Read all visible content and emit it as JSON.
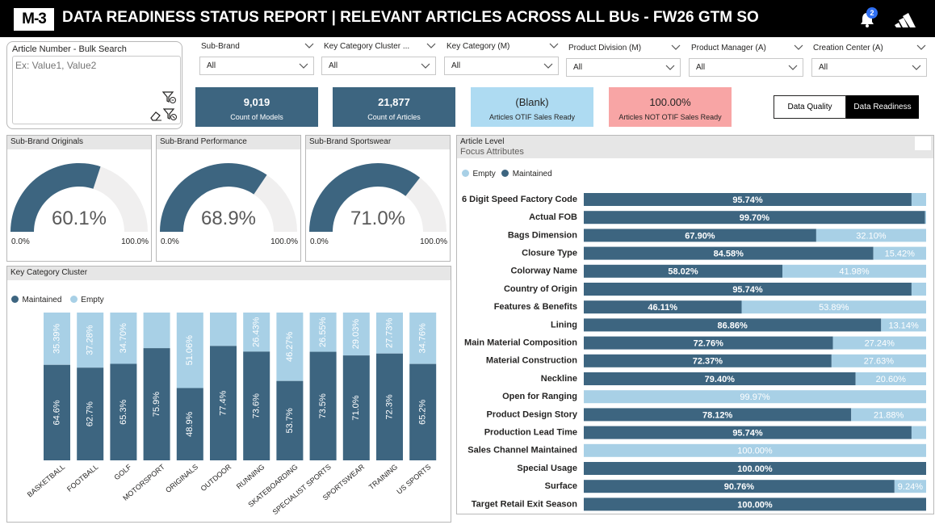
{
  "header": {
    "logo": "M-3",
    "title": "DATA READINESS STATUS REPORT | RELEVANT ARTICLES ACROSS ALL BUs - FW26 GTM SO",
    "notification_count": "2"
  },
  "search": {
    "label": "Article Number - Bulk Search",
    "placeholder": "Ex: Value1, Value2"
  },
  "slicers": [
    {
      "label": "Sub-Brand",
      "value": "All"
    },
    {
      "label": "Key Category Cluster ...",
      "value": "All"
    },
    {
      "label": "Key Category (M)",
      "value": "All"
    },
    {
      "label": "Product Division (M)",
      "value": "All"
    },
    {
      "label": "Product Manager (A)",
      "value": "All"
    },
    {
      "label": "Creation Center (A)",
      "value": "All"
    }
  ],
  "kpis": [
    {
      "value": "9,019",
      "label": "Count of Models"
    },
    {
      "value": "21,877",
      "label": "Count of Articles"
    },
    {
      "value": "(Blank)",
      "label": "Articles OTIF Sales Ready"
    },
    {
      "value": "100.00%",
      "label": "Articles NOT OTIF Sales Ready"
    }
  ],
  "toggle": {
    "quality": "Data Quality",
    "readiness": "Data Readiness"
  },
  "colors": {
    "maintained": "#3d6580",
    "empty": "#a8d0e6",
    "gauge_track": "#f0efef",
    "kpi_dark": "#3d6580",
    "kpi_light": "#aedbf2",
    "kpi_red": "#f8a5a5"
  },
  "gauges": [
    {
      "title": "Sub-Brand Originals",
      "value": 60.1,
      "value_text": "60.1%",
      "min": "0.0%",
      "max": "100.0%"
    },
    {
      "title": "Sub-Brand Performance",
      "value": 68.9,
      "value_text": "68.9%",
      "min": "0.0%",
      "max": "100.0%"
    },
    {
      "title": "Sub-Brand Sportswear",
      "value": 71.0,
      "value_text": "71.0%",
      "min": "0.0%",
      "max": "100.0%"
    }
  ],
  "key_category_panel": {
    "title": "Key Category Cluster",
    "legend": [
      "Maintained",
      "Empty"
    ]
  },
  "article_panel": {
    "title": "Article Level",
    "subtitle": "Focus Attributes",
    "legend": [
      "Empty",
      "Maintained"
    ]
  },
  "chart_data": [
    {
      "type": "bar",
      "stacked": true,
      "orientation": "vertical",
      "categories": [
        "BASKETBALL",
        "FOOTBALL",
        "GOLF",
        "MOTORSPORT",
        "ORIGINALS",
        "OUTDOOR",
        "RUNNING",
        "SKATEBOARDING",
        "SPECIALIST SPORTS",
        "SPORTSWEAR",
        "TRAINING",
        "US SPORTS"
      ],
      "series": [
        {
          "name": "Maintained",
          "values": [
            64.6,
            62.7,
            65.3,
            75.9,
            48.9,
            77.4,
            73.6,
            53.7,
            73.5,
            71.0,
            72.3,
            65.2
          ],
          "labels": [
            "64.6%",
            "62.7%",
            "65.3%",
            "75.9%",
            "48.9%",
            "77.4%",
            "73.6%",
            "53.7%",
            "73.5%",
            "71.0%",
            "72.3%",
            "65.2%"
          ]
        },
        {
          "name": "Empty",
          "values": [
            35.39,
            37.28,
            34.7,
            24.1,
            51.06,
            22.6,
            26.43,
            46.27,
            26.55,
            29.03,
            27.73,
            34.76
          ],
          "labels": [
            "35.39%",
            "37.28%",
            "34.70%",
            "",
            "51.06%",
            "",
            "26.43%",
            "46.27%",
            "26.55%",
            "29.03%",
            "27.73%",
            "34.76%"
          ]
        }
      ],
      "ylim": [
        0,
        100
      ]
    },
    {
      "type": "bar",
      "stacked": true,
      "orientation": "horizontal",
      "categories": [
        "6 Digit Speed Factory Code",
        "Actual FOB",
        "Bags Dimension",
        "Closure Type",
        "Colorway Name",
        "Country of Origin",
        "Features & Benefits",
        "Lining",
        "Main Material Composition",
        "Material Construction",
        "Neckline",
        "Open for Ranging",
        "Product Design Story",
        "Production Lead Time",
        "Sales Channel Maintained",
        "Special Usage",
        "Surface",
        "Target Retail Exit Season"
      ],
      "series": [
        {
          "name": "Maintained",
          "values": [
            95.74,
            99.7,
            67.9,
            84.58,
            58.02,
            95.74,
            46.11,
            86.86,
            72.76,
            72.37,
            79.4,
            0.03,
            78.12,
            95.74,
            0,
            100.0,
            90.76,
            100.0
          ],
          "labels": [
            "95.74%",
            "99.70%",
            "67.90%",
            "84.58%",
            "58.02%",
            "95.74%",
            "46.11%",
            "86.86%",
            "72.76%",
            "72.37%",
            "79.40%",
            "",
            "78.12%",
            "95.74%",
            "",
            "100.00%",
            "90.76%",
            "100.00%"
          ]
        },
        {
          "name": "Empty",
          "values": [
            4.26,
            0.3,
            32.1,
            15.42,
            41.98,
            4.26,
            53.89,
            13.14,
            27.24,
            27.63,
            20.6,
            99.97,
            21.88,
            4.26,
            100.0,
            0,
            9.24,
            0
          ],
          "labels": [
            "",
            "",
            "32.10%",
            "15.42%",
            "41.98%",
            "",
            "53.89%",
            "13.14%",
            "27.24%",
            "27.63%",
            "20.60%",
            "99.97%",
            "21.88%",
            "",
            "100.00%",
            "",
            "9.24%",
            ""
          ]
        }
      ],
      "xlim": [
        0,
        100
      ]
    }
  ]
}
